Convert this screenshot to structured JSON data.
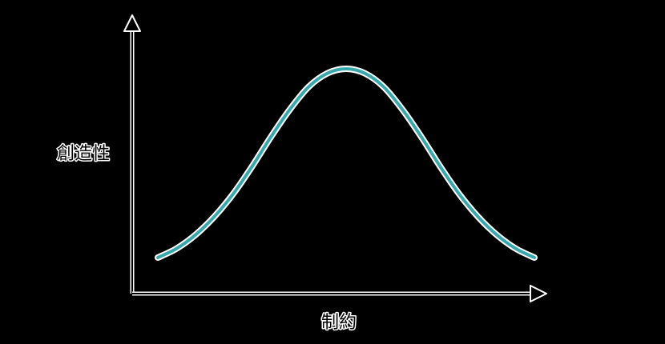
{
  "chart_data": {
    "type": "line",
    "title": "",
    "xlabel": "制約",
    "ylabel": "創造性",
    "xlim": [
      0,
      10
    ],
    "ylim": [
      0,
      10
    ],
    "grid": false,
    "legend": "none",
    "ticks": "none",
    "series": [
      {
        "color": "#3aa7ad",
        "x": [
          0,
          0.5,
          1,
          1.5,
          2,
          2.5,
          3,
          3.5,
          4,
          4.5,
          5,
          5.5,
          6,
          6.5,
          7,
          7.5,
          8,
          8.5,
          9,
          9.5,
          10
        ],
        "y": [
          1.5,
          1.9,
          2.5,
          3.3,
          4.3,
          5.5,
          6.8,
          8.0,
          9.0,
          9.6,
          9.8,
          9.6,
          9.0,
          8.0,
          6.8,
          5.5,
          4.3,
          3.3,
          2.5,
          1.9,
          1.5
        ]
      }
    ],
    "colors": {
      "background": "#000000",
      "axis": "#000000",
      "axis_outline": "#ffffff",
      "curve": "#3aa7ad"
    }
  }
}
